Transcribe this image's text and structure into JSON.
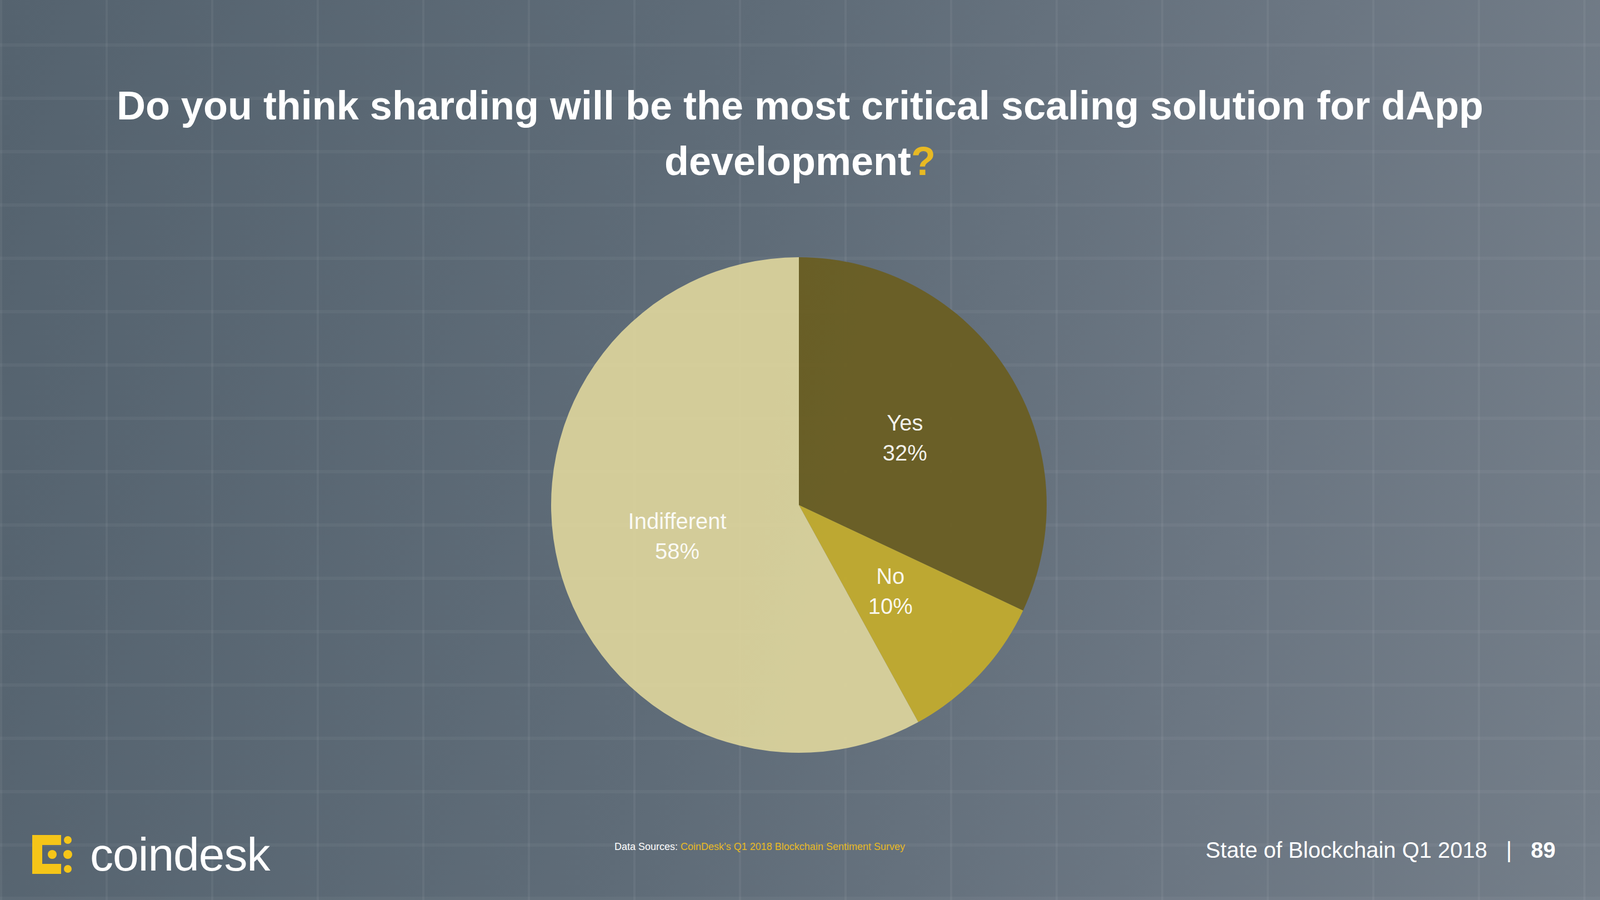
{
  "chart_data": {
    "type": "pie",
    "title": "Do you think sharding will be the most critical scaling solution for dApp development?",
    "categories": [
      "Yes",
      "No",
      "Indifferent"
    ],
    "values": [
      32,
      10,
      58
    ],
    "value_labels": [
      "32%",
      "10%",
      "58%"
    ],
    "colors": [
      "#6a5d1f",
      "#c4ad2b",
      "#ddd59c"
    ],
    "data_labels": true
  },
  "footer": {
    "logo": "coindesk",
    "data_sources_label": "Data Sources:",
    "data_sources": "CoinDesk’s Q1 2018 Blockchain Sentiment Survey",
    "report": "State of Blockchain Q1 2018",
    "separator": "|",
    "page": 89
  }
}
